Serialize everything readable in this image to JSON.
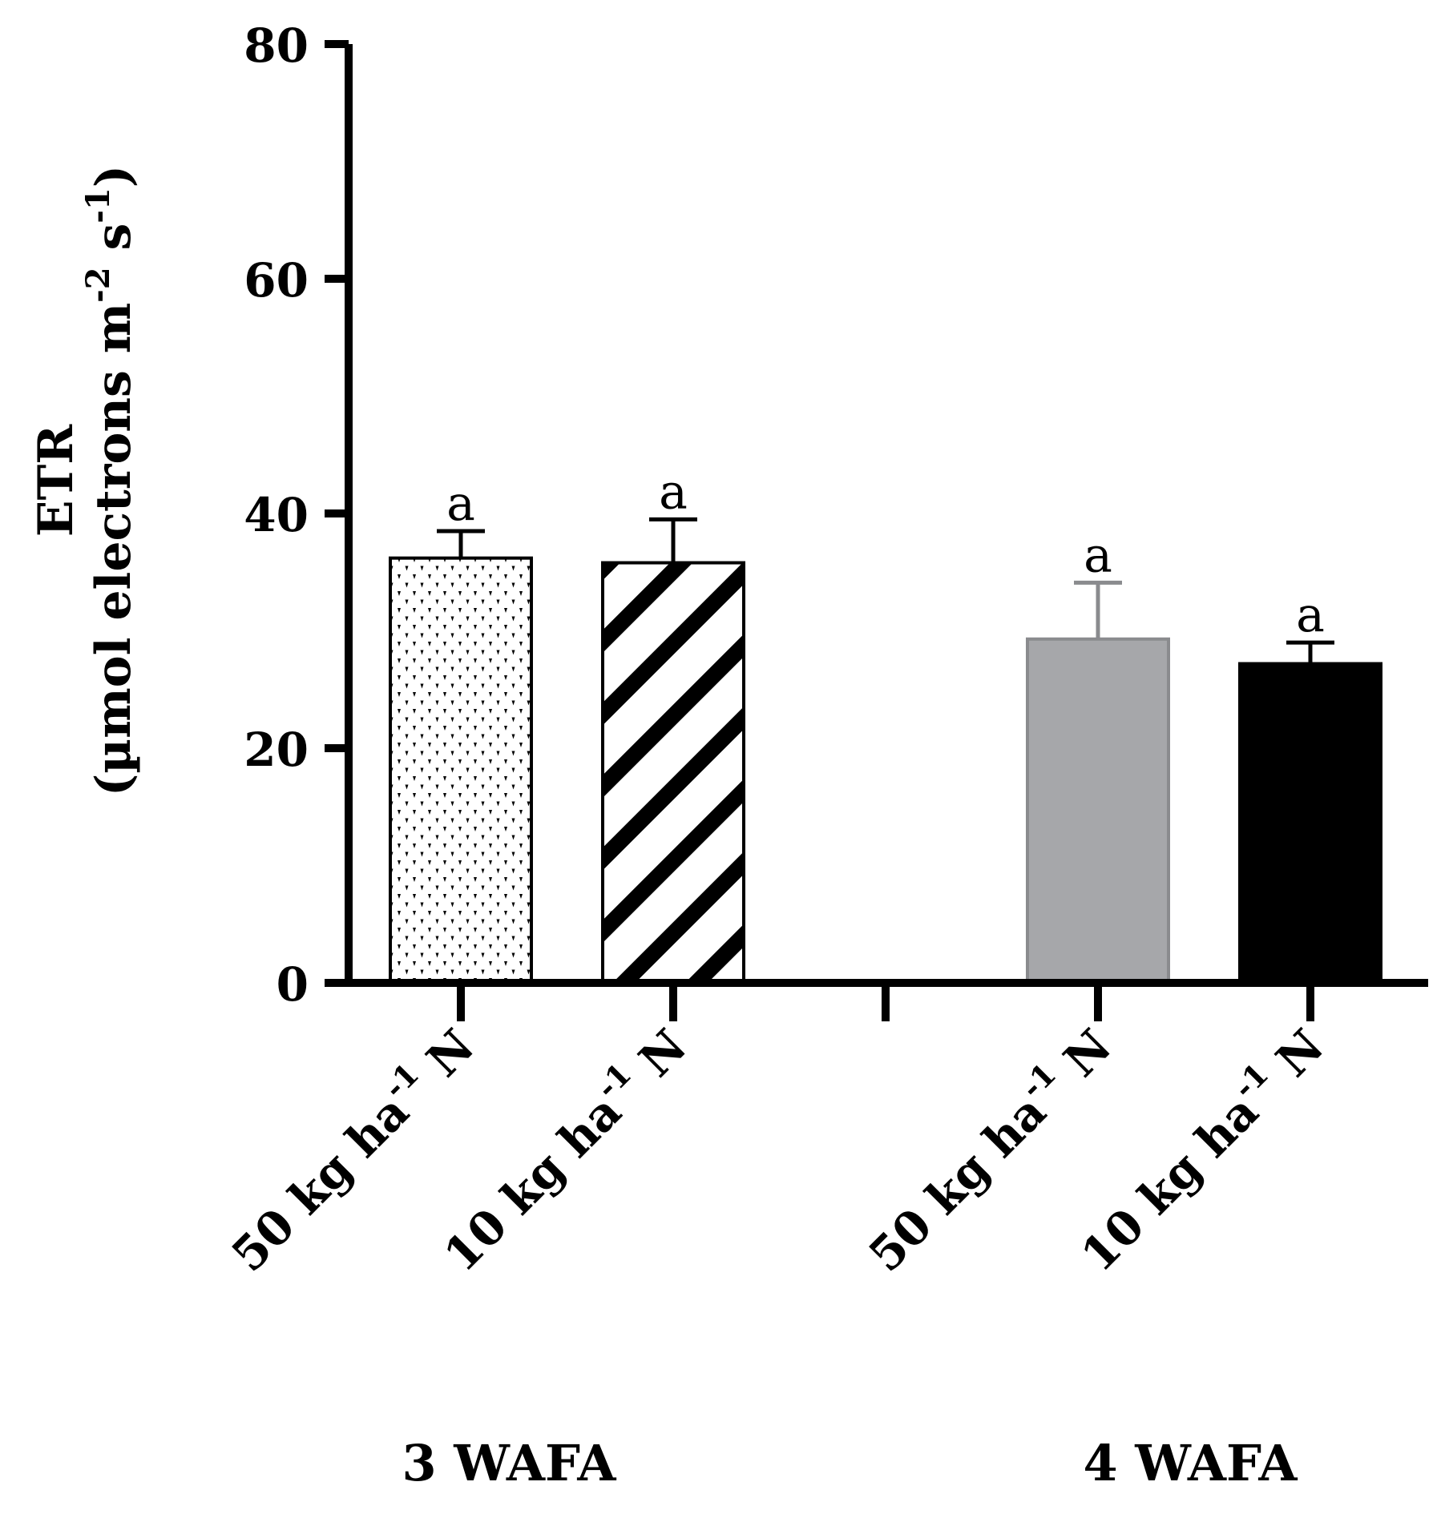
{
  "chart_data": {
    "type": "bar",
    "title": "",
    "ylabel_line1": "ETR",
    "ylabel_line2": "(µmol electrons m",
    "ylabel_sup1": "-2",
    "ylabel_mid": " s",
    "ylabel_sup2": "-1",
    "ylabel_end": ")",
    "ylim": [
      0,
      80
    ],
    "yticks": [
      "0",
      "20",
      "40",
      "60",
      "80"
    ],
    "ytick_values": [
      0,
      20,
      40,
      60,
      80
    ],
    "bars": [
      {
        "label_main": "50 kg ha",
        "label_sup": "-1",
        "label_end": " N",
        "group": "3 WAFA",
        "value": 36.2,
        "error": 2.3,
        "sig": "a",
        "style": "dots"
      },
      {
        "label_main": "10 kg ha",
        "label_sup": "-1",
        "label_end": " N",
        "group": "3 WAFA",
        "value": 35.8,
        "error": 3.7,
        "sig": "a",
        "style": "stripes"
      },
      {
        "label_main": "50 kg ha",
        "label_sup": "-1",
        "label_end": " N",
        "group": "4 WAFA",
        "value": 29.3,
        "error": 4.8,
        "sig": "a",
        "style": "gray"
      },
      {
        "label_main": "10 kg ha",
        "label_sup": "-1",
        "label_end": " N",
        "group": "4 WAFA",
        "value": 27.2,
        "error": 1.8,
        "sig": "a",
        "style": "black"
      }
    ],
    "groups": [
      "3 WAFA",
      "4 WAFA"
    ],
    "colors": {
      "gray": "#a6a7aa",
      "black": "#000000",
      "axis": "#000000"
    }
  }
}
